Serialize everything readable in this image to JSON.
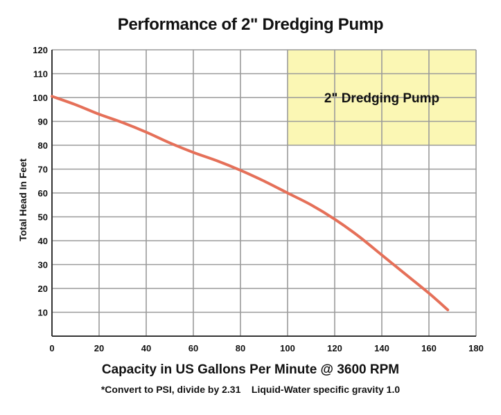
{
  "chart_data": {
    "type": "line",
    "title": "Performance of 2\" Dredging Pump",
    "xlabel": "Capacity in US Gallons Per Minute @ 3600 RPM",
    "ylabel": "Total Head In Feet",
    "note": "*Convert to PSI, divide by 2.31    Liquid-Water specific gravity 1.0",
    "xlim": [
      0,
      180
    ],
    "ylim": [
      0,
      120
    ],
    "xticks": [
      "0",
      "20",
      "40",
      "60",
      "80",
      "100",
      "120",
      "140",
      "160",
      "180"
    ],
    "yticks": [
      "10",
      "20",
      "30",
      "40",
      "50",
      "60",
      "70",
      "80",
      "90",
      "100",
      "110",
      "120"
    ],
    "grid": true,
    "annotation_box": {
      "label": "2\" Dredging Pump",
      "x_range": [
        100,
        180
      ],
      "y_range": [
        80,
        120
      ],
      "color": "#fbf7b4"
    },
    "series": [
      {
        "color": "#e57059",
        "x": [
          0,
          10,
          20,
          30,
          40,
          50,
          60,
          70,
          80,
          90,
          100,
          110,
          120,
          130,
          140,
          150,
          160,
          168
        ],
        "y": [
          100.5,
          97,
          93,
          89.5,
          85.5,
          81,
          77,
          73.5,
          69.5,
          65,
          60,
          55,
          49,
          42,
          34,
          26,
          18,
          11
        ]
      }
    ]
  }
}
